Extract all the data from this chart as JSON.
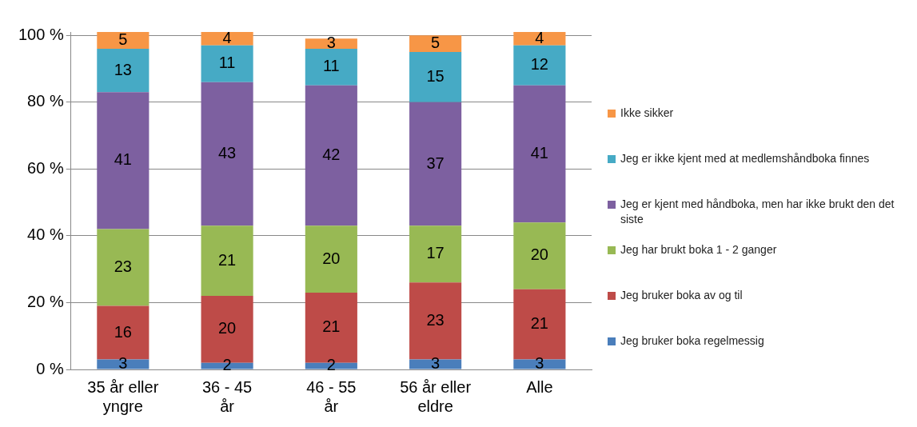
{
  "chart_data": {
    "type": "bar",
    "stacked": true,
    "data_labels": true,
    "legend": "right",
    "grid": "y",
    "categories": [
      "35 år eller yngre",
      "36 - 45 år",
      "46 - 55 år",
      "56 år eller eldre",
      "Alle"
    ],
    "series": [
      {
        "name": "Jeg bruker boka regelmessig",
        "color": "#4a7ebb",
        "values": [
          3,
          2,
          2,
          3,
          3
        ]
      },
      {
        "name": "Jeg bruker boka av og til",
        "color": "#be4b48",
        "values": [
          16,
          20,
          21,
          23,
          21
        ]
      },
      {
        "name": "Jeg har brukt boka 1 - 2 ganger",
        "color": "#98b954",
        "values": [
          23,
          21,
          20,
          17,
          20
        ]
      },
      {
        "name": "Jeg er kjent med håndboka, men har ikke brukt den det siste",
        "color": "#7d60a0",
        "values": [
          41,
          43,
          42,
          37,
          41
        ]
      },
      {
        "name": "Jeg er ikke kjent med at medlemshåndboka finnes",
        "color": "#46aac5",
        "values": [
          13,
          11,
          11,
          15,
          12
        ]
      },
      {
        "name": "Ikke sikker",
        "color": "#f79646",
        "values": [
          5,
          4,
          3,
          5,
          4
        ]
      }
    ],
    "ylim": [
      0,
      101
    ],
    "yticks": [
      {
        "value": 0,
        "label": "0 %"
      },
      {
        "value": 20,
        "label": "20 %"
      },
      {
        "value": 40,
        "label": "40 %"
      },
      {
        "value": 60,
        "label": "60 %"
      },
      {
        "value": 80,
        "label": "80 %"
      },
      {
        "value": 100,
        "label": "100 %"
      }
    ]
  }
}
